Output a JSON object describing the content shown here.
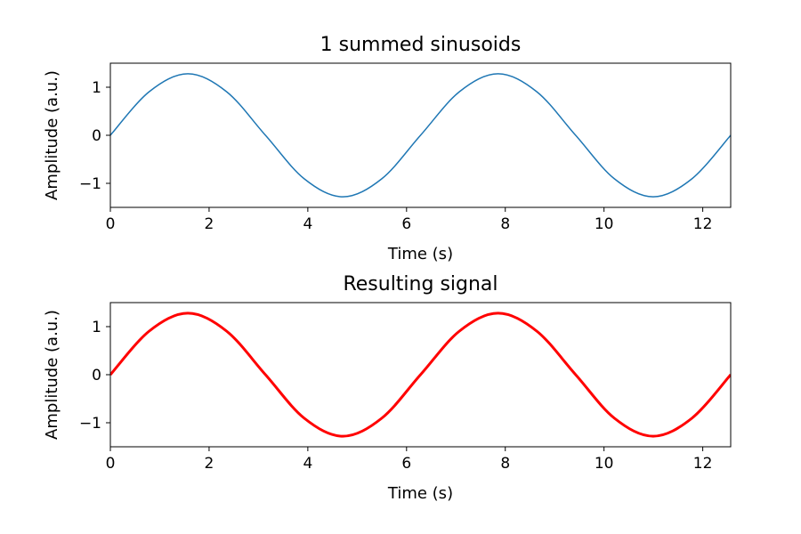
{
  "chart_data": [
    {
      "type": "line",
      "title": "1 summed sinusoids",
      "xlabel": "Time (s)",
      "ylabel": "Amplitude (a.u.)",
      "xlim": [
        0,
        12.566
      ],
      "ylim": [
        -1.5,
        1.5
      ],
      "xticks": [
        0,
        2,
        4,
        6,
        8,
        10,
        12
      ],
      "xtick_labels": [
        "0",
        "2",
        "4",
        "6",
        "8",
        "10",
        "12"
      ],
      "yticks": [
        -1,
        0,
        1
      ],
      "ytick_labels": [
        "−1",
        "0",
        "1"
      ],
      "grid": false,
      "legend": "none",
      "series": [
        {
          "color": "#1f77b4",
          "line_style": "thin",
          "x": [
            0,
            0.785,
            1.571,
            2.356,
            3.142,
            3.927,
            4.712,
            5.498,
            6.283,
            7.069,
            7.854,
            8.639,
            9.425,
            10.21,
            10.996,
            11.781,
            12.566
          ],
          "y": [
            0,
            0.905,
            1.28,
            0.905,
            0,
            -0.905,
            -1.28,
            -0.905,
            0,
            0.905,
            1.28,
            0.905,
            0,
            -0.905,
            -1.28,
            -0.905,
            0
          ]
        }
      ]
    },
    {
      "type": "line",
      "title": "Resulting signal",
      "xlabel": "Time (s)",
      "ylabel": "Amplitude (a.u.)",
      "xlim": [
        0,
        12.566
      ],
      "ylim": [
        -1.5,
        1.5
      ],
      "xticks": [
        0,
        2,
        4,
        6,
        8,
        10,
        12
      ],
      "xtick_labels": [
        "0",
        "2",
        "4",
        "6",
        "8",
        "10",
        "12"
      ],
      "yticks": [
        -1,
        0,
        1
      ],
      "ytick_labels": [
        "−1",
        "0",
        "1"
      ],
      "grid": false,
      "legend": "none",
      "series": [
        {
          "color": "#ff0000",
          "line_style": "thick",
          "x": [
            0,
            0.785,
            1.571,
            2.356,
            3.142,
            3.927,
            4.712,
            5.498,
            6.283,
            7.069,
            7.854,
            8.639,
            9.425,
            10.21,
            10.996,
            11.781,
            12.566
          ],
          "y": [
            0,
            0.905,
            1.28,
            0.905,
            0,
            -0.905,
            -1.28,
            -0.905,
            0,
            0.905,
            1.28,
            0.905,
            0,
            -0.905,
            -1.28,
            -0.905,
            0
          ]
        }
      ]
    }
  ]
}
